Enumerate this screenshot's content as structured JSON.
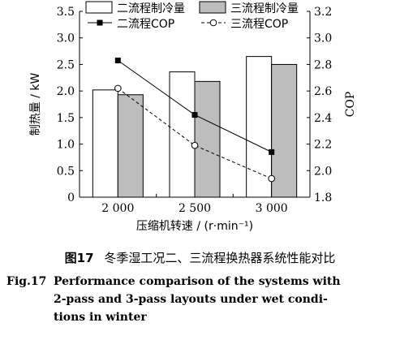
{
  "chart_data": {
    "type": "bar",
    "categories": [
      "2 000",
      "2 500",
      "3 000"
    ],
    "series": [
      {
        "name": "二流程制冷量",
        "kind": "bar",
        "axis": "left",
        "values": [
          2.02,
          2.36,
          2.65
        ],
        "color": "#ffffff"
      },
      {
        "name": "三流程制冷量",
        "kind": "bar",
        "axis": "left",
        "values": [
          1.93,
          2.18,
          2.5
        ],
        "color": "#bdbdbd"
      },
      {
        "name": "二流程COP",
        "kind": "line",
        "axis": "right",
        "values": [
          2.83,
          2.42,
          2.14
        ],
        "marker": "square-filled",
        "line_style": "solid"
      },
      {
        "name": "三流程COP",
        "kind": "line",
        "axis": "right",
        "values": [
          2.62,
          2.19,
          1.94
        ],
        "marker": "circle-open",
        "line_style": "dashed"
      }
    ],
    "xlabel": "压缩机转速 / (r·min⁻¹)",
    "ylabel": "制热量 / kW",
    "y2label": "COP",
    "ylim": [
      0,
      3.5
    ],
    "y2lim": [
      1.8,
      3.2
    ],
    "yticks": [
      "0",
      "0.5",
      "1.0",
      "1.5",
      "2.0",
      "2.5",
      "3.0",
      "3.5"
    ],
    "y2ticks": [
      "1.8",
      "2.0",
      "2.2",
      "2.4",
      "2.6",
      "2.8",
      "3.0",
      "3.2"
    ],
    "legend_position": "top",
    "grid": false
  },
  "caption": {
    "cn_number": "图17",
    "cn_text": "冬季湿工况二、三流程换热器系统性能对比",
    "en_number": "Fig.17",
    "en_line1": "Performance comparison of the systems with",
    "en_line2": "2-pass and 3-pass layouts under wet condi-",
    "en_line3": "tions in winter"
  }
}
